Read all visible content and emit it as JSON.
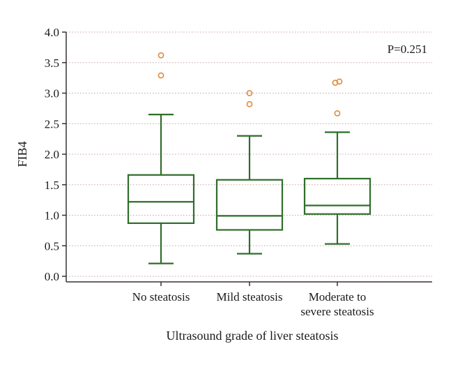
{
  "chart_data": {
    "type": "box",
    "ylabel": "FIB4",
    "xlabel": "Ultrasound grade of liver steatosis",
    "ylim": [
      0.0,
      4.0
    ],
    "yticks": [
      "0.0",
      "0.5",
      "1.0",
      "1.5",
      "2.0",
      "2.5",
      "3.0",
      "3.5",
      "4.0"
    ],
    "grid": "horizontal dotted",
    "annotation": "P=0.251",
    "categories": [
      {
        "lines": [
          "No steatosis"
        ]
      },
      {
        "lines": [
          "Mild steatosis"
        ]
      },
      {
        "lines": [
          "Moderate to",
          "severe steatosis"
        ]
      }
    ],
    "boxes": [
      {
        "whisker_low": 0.21,
        "q1": 0.87,
        "median": 1.22,
        "q3": 1.66,
        "whisker_high": 2.65,
        "outliers": [
          3.29,
          3.62
        ]
      },
      {
        "whisker_low": 0.37,
        "q1": 0.76,
        "median": 0.99,
        "q3": 1.58,
        "whisker_high": 2.3,
        "outliers": [
          2.82,
          3.0
        ]
      },
      {
        "whisker_low": 0.53,
        "q1": 1.02,
        "median": 1.16,
        "q3": 1.6,
        "whisker_high": 2.36,
        "outliers": [
          2.67,
          3.17,
          3.19
        ]
      }
    ],
    "colors": {
      "box": "#2e6e2a",
      "outlier": "#e08a3c",
      "grid": "#c9a0a0",
      "axis": "#333333"
    }
  }
}
